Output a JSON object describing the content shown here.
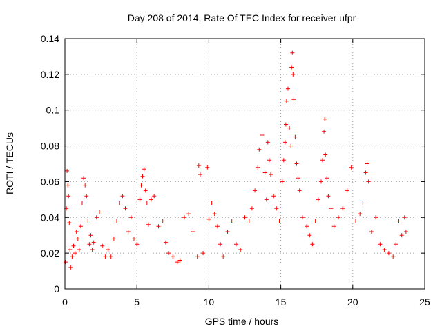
{
  "chart_data": {
    "type": "scatter",
    "title": "Day 208 of 2014, Rate Of TEC Index for receiver ufpr",
    "xlabel": "GPS time / hours",
    "ylabel": "ROTI / TECUs",
    "xlim": [
      0,
      25
    ],
    "ylim": [
      0,
      0.14
    ],
    "xticks": [
      0,
      5,
      10,
      15,
      20,
      25
    ],
    "yticks": [
      0,
      0.02,
      0.04,
      0.06,
      0.08,
      0.1,
      0.12,
      0.14
    ],
    "xtick_labels": [
      "0",
      "5",
      "10",
      "15",
      "20",
      "25"
    ],
    "ytick_labels": [
      "0",
      "0.02",
      "0.04",
      "0.06",
      "0.08",
      "0.1",
      "0.12",
      "0.14"
    ],
    "grid": true,
    "marker": "+",
    "color": "#ff0000",
    "series": [
      {
        "name": "ROTI",
        "points": [
          [
            0.05,
            0.015
          ],
          [
            0.1,
            0.045
          ],
          [
            0.15,
            0.066
          ],
          [
            0.2,
            0.058
          ],
          [
            0.25,
            0.052
          ],
          [
            0.3,
            0.037
          ],
          [
            0.35,
            0.022
          ],
          [
            0.4,
            0.012
          ],
          [
            0.5,
            0.018
          ],
          [
            0.6,
            0.024
          ],
          [
            0.7,
            0.02
          ],
          [
            0.8,
            0.032
          ],
          [
            0.9,
            0.028
          ],
          [
            1.0,
            0.022
          ],
          [
            1.1,
            0.035
          ],
          [
            1.2,
            0.048
          ],
          [
            1.3,
            0.062
          ],
          [
            1.4,
            0.058
          ],
          [
            1.5,
            0.052
          ],
          [
            1.6,
            0.038
          ],
          [
            1.7,
            0.025
          ],
          [
            1.8,
            0.03
          ],
          [
            1.9,
            0.022
          ],
          [
            2.0,
            0.026
          ],
          [
            2.2,
            0.04
          ],
          [
            2.4,
            0.043
          ],
          [
            2.6,
            0.024
          ],
          [
            2.8,
            0.018
          ],
          [
            3.0,
            0.022
          ],
          [
            3.2,
            0.018
          ],
          [
            3.4,
            0.028
          ],
          [
            3.6,
            0.038
          ],
          [
            3.8,
            0.048
          ],
          [
            4.0,
            0.052
          ],
          [
            4.2,
            0.045
          ],
          [
            4.4,
            0.032
          ],
          [
            4.6,
            0.04
          ],
          [
            4.8,
            0.028
          ],
          [
            5.0,
            0.025
          ],
          [
            5.2,
            0.05
          ],
          [
            5.3,
            0.058
          ],
          [
            5.4,
            0.063
          ],
          [
            5.5,
            0.067
          ],
          [
            5.6,
            0.055
          ],
          [
            5.7,
            0.048
          ],
          [
            5.8,
            0.036
          ],
          [
            6.0,
            0.05
          ],
          [
            6.2,
            0.052
          ],
          [
            6.5,
            0.035
          ],
          [
            6.8,
            0.038
          ],
          [
            7.0,
            0.026
          ],
          [
            7.2,
            0.02
          ],
          [
            7.5,
            0.018
          ],
          [
            7.8,
            0.015
          ],
          [
            8.0,
            0.016
          ],
          [
            8.3,
            0.04
          ],
          [
            8.6,
            0.042
          ],
          [
            8.9,
            0.032
          ],
          [
            9.2,
            0.018
          ],
          [
            9.3,
            0.069
          ],
          [
            9.4,
            0.064
          ],
          [
            9.6,
            0.02
          ],
          [
            9.9,
            0.068
          ],
          [
            10.0,
            0.039
          ],
          [
            10.2,
            0.048
          ],
          [
            10.4,
            0.042
          ],
          [
            10.6,
            0.035
          ],
          [
            10.8,
            0.025
          ],
          [
            11.0,
            0.018
          ],
          [
            11.3,
            0.032
          ],
          [
            11.6,
            0.038
          ],
          [
            11.9,
            0.025
          ],
          [
            12.2,
            0.022
          ],
          [
            12.5,
            0.04
          ],
          [
            12.8,
            0.038
          ],
          [
            13.0,
            0.045
          ],
          [
            13.2,
            0.055
          ],
          [
            13.4,
            0.068
          ],
          [
            13.5,
            0.078
          ],
          [
            13.7,
            0.086
          ],
          [
            13.9,
            0.065
          ],
          [
            14.0,
            0.05
          ],
          [
            14.1,
            0.082
          ],
          [
            14.2,
            0.072
          ],
          [
            14.3,
            0.064
          ],
          [
            14.5,
            0.052
          ],
          [
            14.7,
            0.045
          ],
          [
            14.9,
            0.038
          ],
          [
            15.1,
            0.06
          ],
          [
            15.2,
            0.072
          ],
          [
            15.3,
            0.082
          ],
          [
            15.35,
            0.092
          ],
          [
            15.4,
            0.105
          ],
          [
            15.5,
            0.112
          ],
          [
            15.6,
            0.09
          ],
          [
            15.7,
            0.08
          ],
          [
            15.75,
            0.124
          ],
          [
            15.8,
            0.132
          ],
          [
            15.85,
            0.12
          ],
          [
            15.9,
            0.106
          ],
          [
            16.0,
            0.085
          ],
          [
            16.1,
            0.07
          ],
          [
            16.2,
            0.062
          ],
          [
            16.3,
            0.055
          ],
          [
            16.5,
            0.04
          ],
          [
            16.8,
            0.035
          ],
          [
            17.0,
            0.03
          ],
          [
            17.2,
            0.025
          ],
          [
            17.4,
            0.038
          ],
          [
            17.6,
            0.05
          ],
          [
            17.8,
            0.06
          ],
          [
            17.9,
            0.072
          ],
          [
            18.0,
            0.088
          ],
          [
            18.05,
            0.095
          ],
          [
            18.1,
            0.075
          ],
          [
            18.2,
            0.062
          ],
          [
            18.3,
            0.052
          ],
          [
            18.5,
            0.045
          ],
          [
            18.7,
            0.035
          ],
          [
            19.0,
            0.04
          ],
          [
            19.3,
            0.045
          ],
          [
            19.6,
            0.055
          ],
          [
            19.9,
            0.068
          ],
          [
            20.2,
            0.038
          ],
          [
            20.5,
            0.042
          ],
          [
            20.7,
            0.048
          ],
          [
            20.9,
            0.065
          ],
          [
            21.0,
            0.07
          ],
          [
            21.1,
            0.06
          ],
          [
            21.3,
            0.032
          ],
          [
            21.6,
            0.04
          ],
          [
            21.9,
            0.025
          ],
          [
            22.2,
            0.022
          ],
          [
            22.5,
            0.02
          ],
          [
            22.8,
            0.018
          ],
          [
            23.0,
            0.025
          ],
          [
            23.2,
            0.038
          ],
          [
            23.4,
            0.03
          ],
          [
            23.6,
            0.04
          ],
          [
            23.7,
            0.032
          ]
        ]
      }
    ]
  }
}
